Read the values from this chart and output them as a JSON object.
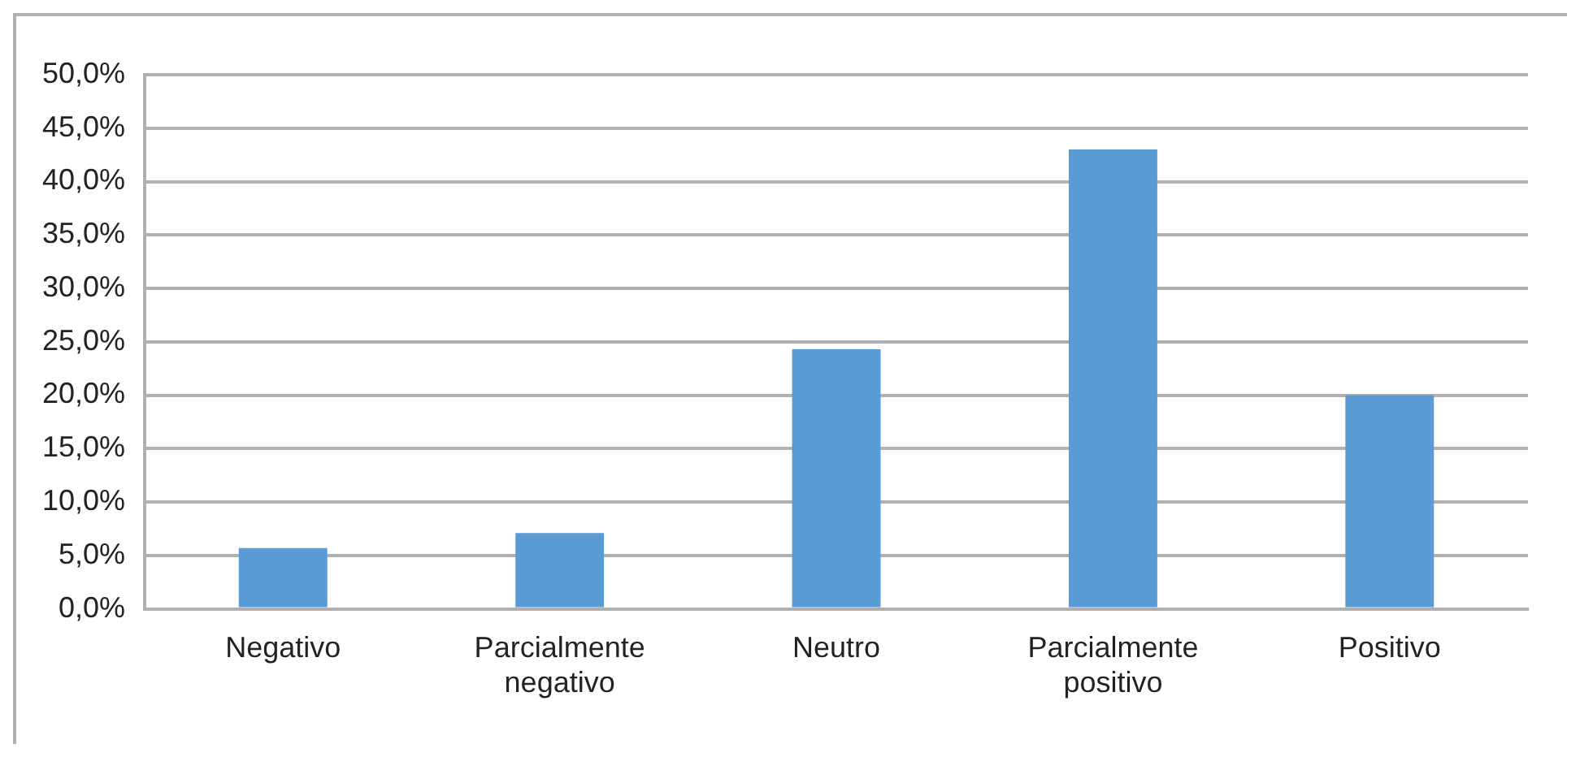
{
  "chart_data": {
    "type": "bar",
    "categories": [
      "Negativo",
      "Parcialmente negativo",
      "Neutro",
      "Parcialmente positivo",
      "Positivo"
    ],
    "values": [
      5.7,
      7.1,
      24.3,
      43.0,
      20.0
    ],
    "color": "#5b9bd5",
    "ylim": [
      0,
      50
    ],
    "yticks": [
      {
        "value": 0,
        "label": "0,0%"
      },
      {
        "value": 5,
        "label": "5,0%"
      },
      {
        "value": 10,
        "label": "10,0%"
      },
      {
        "value": 15,
        "label": "15,0%"
      },
      {
        "value": 20,
        "label": "20,0%"
      },
      {
        "value": 25,
        "label": "25,0%"
      },
      {
        "value": 30,
        "label": "30,0%"
      },
      {
        "value": 35,
        "label": "35,0%"
      },
      {
        "value": 40,
        "label": "40,0%"
      },
      {
        "value": 45,
        "label": "45,0%"
      },
      {
        "value": 50,
        "label": "50,0%"
      }
    ],
    "grid": "y"
  }
}
